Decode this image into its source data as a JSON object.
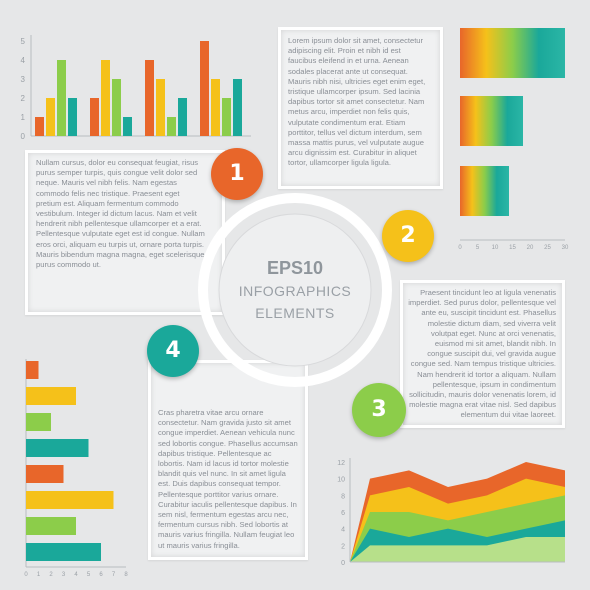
{
  "center": {
    "title": "EPS10",
    "line1": "INFOGRAPHICS",
    "line2": "ELEMENTS"
  },
  "badges": [
    {
      "label": "1",
      "color": "#e8662a"
    },
    {
      "label": "2",
      "color": "#f5c11a"
    },
    {
      "label": "3",
      "color": "#8ccd4a"
    },
    {
      "label": "4",
      "color": "#1aa89a"
    }
  ],
  "texts": {
    "block1": "Nullam cursus, dolor eu consequat feugiat, risus purus semper turpis, quis congue velit dolor sed neque. Mauris vel nibh felis. Nam egestas commodo felis nec tristique. Praesent eget pretium est. Aliquam fermentum commodo vestibulum. Integer id dictum lacus. Nam et velit hendrerit nibh pellentesque ullamcorper et a erat. Pellentesque vulputate eget est id congue. Nullam eros orci, aliquam eu turpis ut, ornare porta turpis. Mauris bibendum magna magna, eget scelerisque purus commodo ut.",
    "block2": "Lorem ipsum dolor sit amet, consectetur adipiscing elit. Proin et nibh id est faucibus eleifend in et urna. Aenean sodales placerat ante ut consequat. Mauris nibh nisi, ultricies eget enim eget, tristique ullamcorper ipsum. Sed lacinia dapibus tortor sit amet consectetur. Nam metus arcu, imperdiet non felis quis, vulputate condimentum erat. Etiam porttitor, tellus vel dictum interdum, sem massa mattis purus, vel vulputate augue arcu dignissim est. Curabitur in aliquet tortor, ullamcorper ligula ligula.",
    "block3": "Praesent tincidunt leo at ligula venenatis imperdiet. Sed purus dolor, pellentesque vel ante eu, suscipit tincidunt est. Phasellus molestie dictum diam, sed viverra velit volutpat eget. Nunc at orci venenatis, euismod mi sit amet, blandit nibh. In congue suscipit dui, vel gravida augue congue sed. Nam tempus tristique ultricies. Nam hendrerit id tortor a aliquam. Nullam pellentesque, ipsum in condimentum sollicitudin, mauris dolor venenatis lorem, id molestie magna erat vitae nisl. Sed dapibus elementum dui vitae laoreet.",
    "block4": "Cras pharetra vitae arcu ornare consectetur. Nam gravida justo sit amet congue imperdiet. Aenean vehicula nunc sed lobortis congue. Phasellus accumsan dapibus tristique. Pellentesque ac lobortis. Nam id lacus id tortor molestie blandit quis vel nunc. In sit amet ligula est. Duis dapibus consequat tempor. Pellentesque porttitor varius ornare. Curabitur iaculis pellentesque dapibus. In sem nisl, fermentum egestas arcu nec, fermentum cursus nibh. Sed lobortis at mauris varius fringilla. Nullam feugiat leo ut mauris varius fringilla."
  },
  "chart_data": [
    {
      "type": "bar",
      "categories": [
        "",
        "",
        ""
      ],
      "series": [
        {
          "values": [
            1,
            2,
            4
          ]
        },
        {
          "values": [
            2,
            4,
            3
          ]
        },
        {
          "values": [
            4,
            3,
            1
          ]
        },
        {
          "values": [
            2,
            1,
            2
          ]
        },
        {
          "values": [
            5,
            3,
            2
          ]
        },
        {
          "values": [
            3,
            0,
            0
          ]
        }
      ],
      "ylim": [
        0,
        5
      ],
      "yticks": [
        "0",
        "1",
        "2",
        "3",
        "4",
        "5"
      ],
      "grid": false
    },
    {
      "type": "bar",
      "orientation": "horizontal",
      "categories": [
        "",
        "",
        ""
      ],
      "values": [
        30,
        18,
        14
      ],
      "xlim": [
        0,
        30
      ],
      "xticks": [
        "0",
        "5",
        "10",
        "15",
        "20",
        "25",
        "30"
      ]
    },
    {
      "type": "bar",
      "orientation": "horizontal",
      "categories": [
        "",
        "",
        "",
        "",
        "",
        "",
        "",
        ""
      ],
      "values": [
        1,
        4,
        2,
        5,
        3,
        7,
        4,
        6
      ],
      "xlim": [
        0,
        8
      ],
      "xticks": [
        "0",
        "1",
        "2",
        "3",
        "4",
        "5",
        "6",
        "7",
        "8"
      ]
    },
    {
      "type": "area",
      "x": [
        0,
        1,
        2,
        3,
        4,
        5
      ],
      "ylim": [
        0,
        12
      ],
      "yticks": [
        "0",
        "2",
        "4",
        "6",
        "8",
        "10",
        "12"
      ],
      "series": [
        {
          "values": [
            10,
            11,
            9,
            10,
            12,
            11
          ]
        },
        {
          "values": [
            8,
            9,
            7,
            8,
            10,
            9
          ]
        },
        {
          "values": [
            6,
            6,
            5,
            6,
            7,
            8
          ]
        },
        {
          "values": [
            4,
            3,
            4,
            3,
            4,
            5
          ]
        },
        {
          "values": [
            2,
            2,
            2,
            2,
            3,
            3
          ]
        }
      ]
    }
  ],
  "colors": {
    "orange": "#e8662a",
    "yellow": "#f5c11a",
    "green": "#8ccd4a",
    "teal": "#1aa89a"
  }
}
